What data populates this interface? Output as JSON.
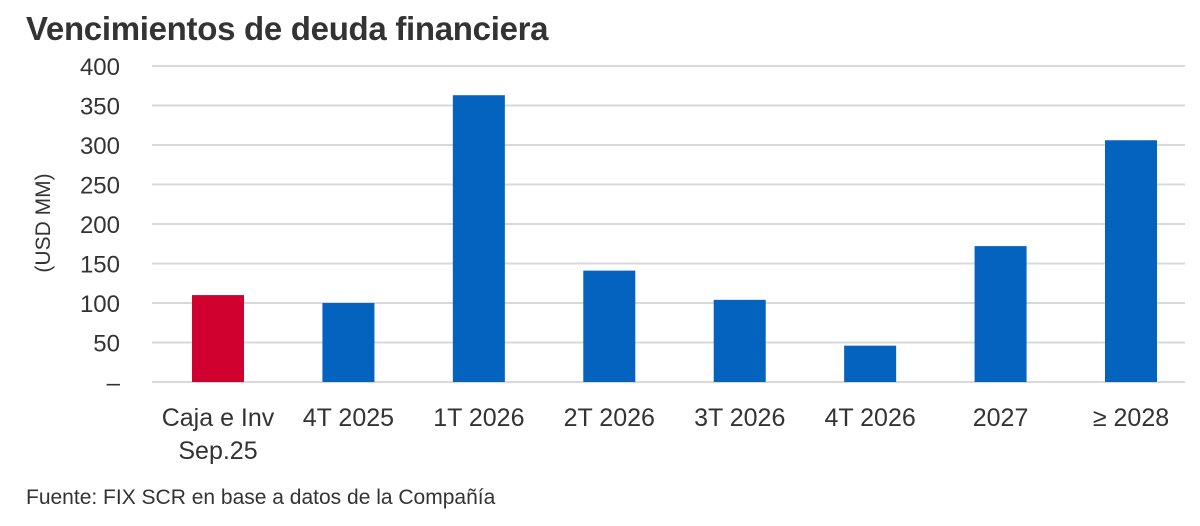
{
  "header": {
    "title": "Vencimientos de deuda financiera"
  },
  "footer": {
    "source": "Fuente: FIX SCR en base a datos de la Compañía"
  },
  "colors": {
    "highlight": "#d0002f",
    "primary": "#0363be",
    "grid": "#d9d9d9",
    "text": "#333333"
  },
  "chart_data": {
    "type": "bar",
    "title": "Vencimientos de deuda financiera",
    "xlabel": "",
    "ylabel": "(USD MM)",
    "ylim": [
      0,
      400
    ],
    "yticks": [
      0,
      50,
      100,
      150,
      200,
      250,
      300,
      350,
      400
    ],
    "ytick_labels": [
      "–",
      "50",
      "100",
      "150",
      "200",
      "250",
      "300",
      "350",
      "400"
    ],
    "grid": true,
    "categories": [
      [
        "Caja e Inv",
        "Sep.25"
      ],
      [
        "4T 2025"
      ],
      [
        "1T 2026"
      ],
      [
        "2T 2026"
      ],
      [
        "3T 2026"
      ],
      [
        "4T 2026"
      ],
      [
        "2027"
      ],
      [
        "≥ 2028"
      ]
    ],
    "values": [
      110,
      100,
      363,
      141,
      104,
      46,
      172,
      306
    ],
    "bar_colors": [
      "highlight",
      "primary",
      "primary",
      "primary",
      "primary",
      "primary",
      "primary",
      "primary"
    ]
  }
}
